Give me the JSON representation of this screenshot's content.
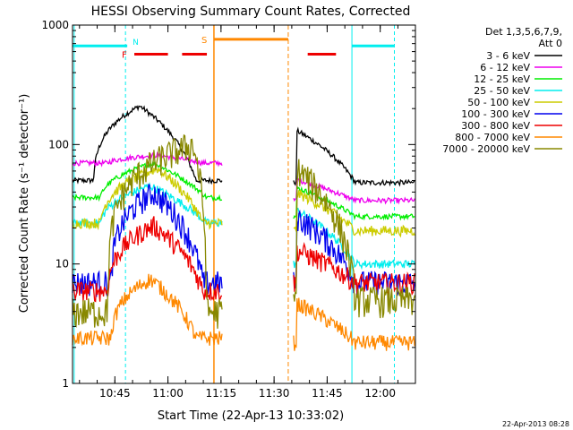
{
  "chart_data": {
    "type": "line",
    "title": "HESSI Observing Summary Count Rates, Corrected",
    "xlabel": "Start Time (22-Apr-13 10:33:02)",
    "ylabel": "Corrected Count Rate (s⁻¹ detector⁻¹)",
    "ylog": true,
    "ylim": [
      1,
      1000
    ],
    "xlim_minutes": [
      33.03,
      129.95
    ],
    "x_tick_labels": [
      "10:45",
      "11:00",
      "11:15",
      "11:30",
      "11:45",
      "12:00"
    ],
    "x_tick_minutes": [
      45,
      60,
      75,
      90,
      105,
      120
    ],
    "y_tick_labels": [
      "1",
      "10",
      "100",
      "1000"
    ],
    "y_tick_values": [
      1,
      10,
      100,
      1000
    ],
    "timestamp": "22-Apr-2013 08:28",
    "legend": {
      "header_line1": "Det 1,3,5,6,7,9,",
      "header_line2": "Att 0",
      "placement": "right"
    },
    "series": [
      {
        "name": "3 - 6 keV",
        "color": "#000000"
      },
      {
        "name": "6 - 12 keV",
        "color": "#ee00ee"
      },
      {
        "name": "12 - 25 keV",
        "color": "#00ee00"
      },
      {
        "name": "25 - 50 keV",
        "color": "#00eeee"
      },
      {
        "name": "50 - 100 keV",
        "color": "#cccc00"
      },
      {
        "name": "100 - 300 keV",
        "color": "#0000ee"
      },
      {
        "name": "300 - 800 keV",
        "color": "#ee0000"
      },
      {
        "name": "800 - 7000 keV",
        "color": "#ff8800"
      },
      {
        "name": "7000 - 20000 keV",
        "color": "#888800"
      }
    ],
    "flags": {
      "F_label": "F",
      "N_label": "N",
      "S_label": "S",
      "F_color": "#ee0000",
      "N_color": "#00eeee",
      "S_color": "#ff8800"
    },
    "vertical_markers_minutes": {
      "cyan_dashed": [
        48.0,
        124.0
      ],
      "cyan_solid": [
        33.5,
        112.0
      ],
      "orange_solid": [
        73.0
      ],
      "orange_dashed": [
        94.0
      ]
    },
    "flag_spans_minutes": {
      "F": [
        [
          50.5,
          60.0
        ],
        [
          64.0,
          71.0
        ],
        [
          99.5,
          107.5
        ]
      ],
      "N": [
        [
          33.0,
          48.5
        ],
        [
          112.0,
          124.0
        ]
      ],
      "S": [
        [
          73.0,
          94.0
        ]
      ]
    },
    "flag_levels": {
      "F": 570,
      "N": 670,
      "S": 760
    },
    "night_gap_minutes": [
      75.5,
      95.5
    ],
    "profiles": [
      {
        "base": [
          50,
          48
        ],
        "peak": 210,
        "rise": 39,
        "peak_t": 52,
        "fall": 68,
        "noise": 0.05
      },
      {
        "base": [
          70,
          34
        ],
        "peak": 82,
        "rise": 43,
        "peak_t": 57,
        "fall": 70,
        "noise": 0.05
      },
      {
        "base": [
          36,
          25
        ],
        "peak": 70,
        "rise": 41,
        "peak_t": 56,
        "fall": 71,
        "noise": 0.05
      },
      {
        "base": [
          22,
          10
        ],
        "peak": 45,
        "rise": 41,
        "peak_t": 55,
        "fall": 71,
        "noise": 0.08
      },
      {
        "base": [
          22,
          19
        ],
        "peak": 63,
        "rise": 41,
        "peak_t": 57,
        "fall": 70,
        "noise": 0.1
      },
      {
        "base": [
          7,
          7
        ],
        "peak": 40,
        "rise": 44,
        "peak_t": 56,
        "fall": 70,
        "noise": 0.25
      },
      {
        "base": [
          6,
          7
        ],
        "peak": 21,
        "rise": 43,
        "peak_t": 56,
        "fall": 70,
        "noise": 0.2
      },
      {
        "base": [
          2.4,
          2.2
        ],
        "peak": 7.5,
        "rise": 44,
        "peak_t": 55,
        "fall": 68,
        "noise": 0.15
      },
      {
        "base": [
          4,
          5
        ],
        "peak": 100,
        "rise": 43,
        "peak_t": 67,
        "fall": 71,
        "noise": 0.3
      }
    ]
  }
}
